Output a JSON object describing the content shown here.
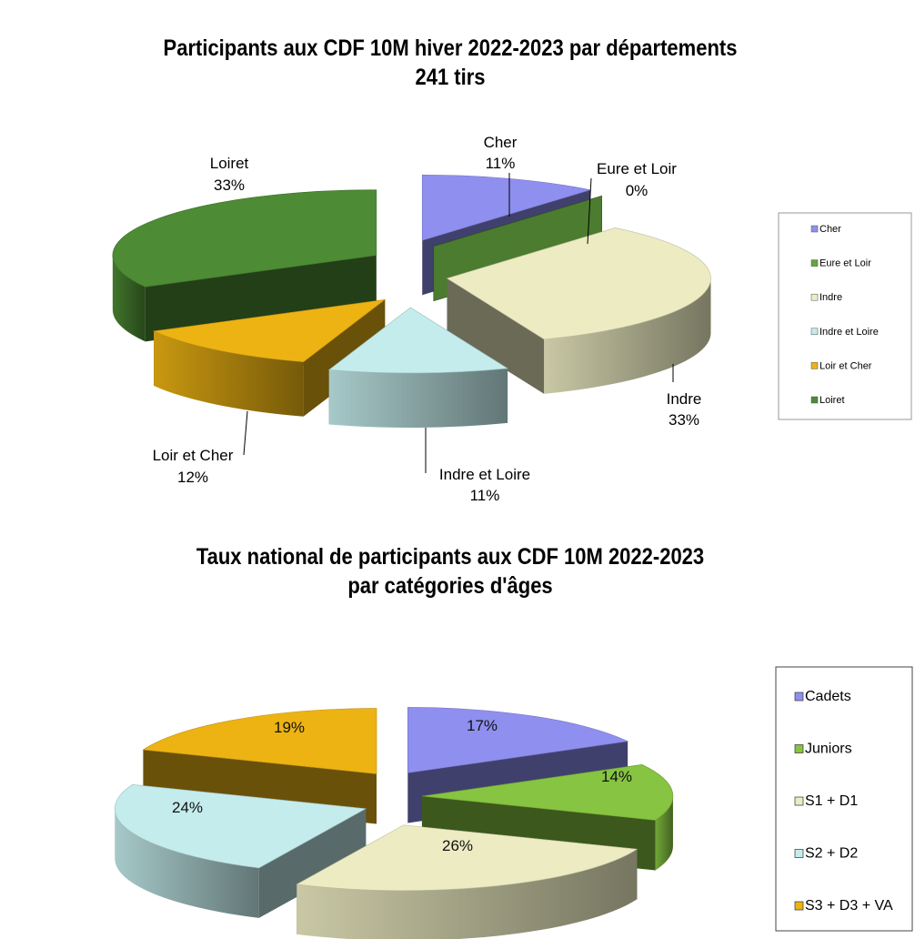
{
  "chart_data": [
    {
      "type": "pie",
      "title": "Participants aux CDF 10M hiver 2022-2023 par départements",
      "subtitle": "241 tirs",
      "categories": [
        "Cher",
        "Eure et Loir",
        "Indre",
        "Indre et Loire",
        "Loir et Cher",
        "Loiret"
      ],
      "values": [
        11,
        0,
        33,
        11,
        12,
        33
      ],
      "value_labels": [
        "11%",
        "0%",
        "33%",
        "11%",
        "12%",
        "33%"
      ],
      "colors": [
        "#8f8ff0",
        "#64a53e",
        "#ecebc2",
        "#c4ecec",
        "#ecb313",
        "#4d8b34"
      ],
      "legend": "right",
      "style": "3d-exploded"
    },
    {
      "type": "pie",
      "title": "Taux national de participants aux CDF 10M 2022-2023",
      "subtitle": "par catégories d'âges",
      "categories": [
        "Cadets",
        "Juniors",
        "S1 + D1",
        "S2 + D2",
        "S3 + D3 + VA"
      ],
      "values": [
        17,
        14,
        26,
        24,
        19
      ],
      "value_labels": [
        "17%",
        "14%",
        "26%",
        "24%",
        "19%"
      ],
      "colors": [
        "#8f8ff0",
        "#86c441",
        "#ecebc2",
        "#c4ecec",
        "#ecb313"
      ],
      "legend": "right",
      "style": "3d-exploded"
    }
  ]
}
